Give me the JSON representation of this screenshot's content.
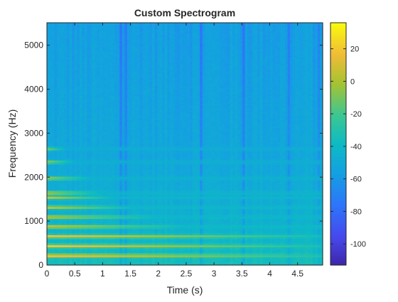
{
  "chart_data": {
    "type": "heatmap",
    "title": "Custom Spectrogram",
    "xlabel": "Time (s)",
    "ylabel": "Frequency (Hz)",
    "xlim": [
      0,
      4.95
    ],
    "ylim": [
      0,
      5512
    ],
    "xticks": [
      0,
      0.5,
      1,
      1.5,
      2,
      2.5,
      3,
      3.5,
      4,
      4.5
    ],
    "xtick_labels": [
      "0",
      "0.5",
      "1",
      "1.5",
      "2",
      "2.5",
      "3",
      "3.5",
      "4",
      "4.5"
    ],
    "yticks": [
      0,
      1000,
      2000,
      3000,
      4000,
      5000
    ],
    "ytick_labels": [
      "0",
      "1000",
      "2000",
      "3000",
      "4000",
      "5000"
    ],
    "colorbar": {
      "clim": [
        -113,
        36
      ],
      "ticks": [
        20,
        0,
        -20,
        -40,
        -60,
        -80,
        -100
      ],
      "tick_labels": [
        "20",
        "0",
        "-20",
        "-40",
        "-60",
        "-80",
        "-100"
      ],
      "colormap": "parula"
    },
    "background_level_db": [
      {
        "freq": 0,
        "db": -35
      },
      {
        "freq": 1000,
        "db": -45
      },
      {
        "freq": 2500,
        "db": -52
      },
      {
        "freq": 5512,
        "db": -57
      }
    ],
    "harmonics": [
      {
        "freq": 220,
        "peak_db": 25,
        "decay_end_s": 4.95
      },
      {
        "freq": 440,
        "peak_db": 22,
        "decay_end_s": 4.95
      },
      {
        "freq": 660,
        "peak_db": 20,
        "decay_end_s": 4.95
      },
      {
        "freq": 880,
        "peak_db": 15,
        "decay_end_s": 2.5
      },
      {
        "freq": 1100,
        "peak_db": 13,
        "decay_end_s": 2.0
      },
      {
        "freq": 1320,
        "peak_db": 12,
        "decay_end_s": 1.6
      },
      {
        "freq": 1540,
        "peak_db": 10,
        "decay_end_s": 1.2
      },
      {
        "freq": 1650,
        "peak_db": 9,
        "decay_end_s": 1.0
      },
      {
        "freq": 1980,
        "peak_db": 6,
        "decay_end_s": 0.8
      },
      {
        "freq": 2350,
        "peak_db": 2,
        "decay_end_s": 0.5
      },
      {
        "freq": 2650,
        "peak_db": -4,
        "decay_end_s": 0.35
      }
    ]
  }
}
